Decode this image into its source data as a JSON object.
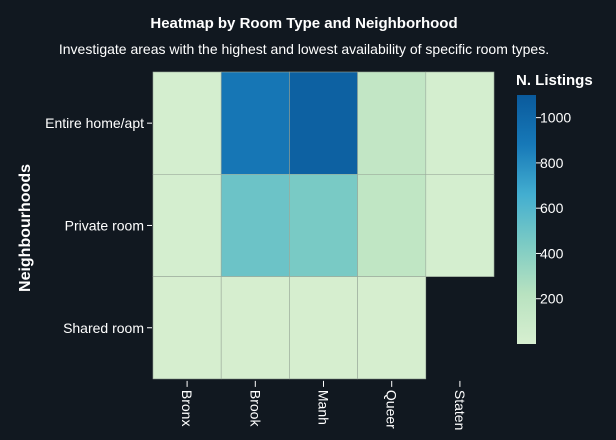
{
  "chart_data": {
    "type": "heatmap",
    "title": "Heatmap by Room Type and Neighborhood",
    "subtitle": "Investigate areas with the highest and lowest availability of specific room types.",
    "ylabel": "Neighbourhoods",
    "xlabel": "",
    "x_categories": [
      "Bronx",
      "Brook",
      "Manh",
      "Queer",
      "Staten"
    ],
    "y_categories": [
      "Entire home/apt",
      "Private room",
      "Shared room"
    ],
    "values": [
      [
        20,
        900,
        1050,
        150,
        20
      ],
      [
        20,
        500,
        450,
        160,
        20
      ],
      [
        10,
        10,
        10,
        10,
        null
      ]
    ],
    "colorbar": {
      "title": "N. Listings",
      "ticks": [
        200,
        400,
        600,
        800,
        1000
      ],
      "range": [
        0,
        1100
      ],
      "colors": [
        "#d7efd0",
        "#b8e2c0",
        "#7ccbc4",
        "#43aed0",
        "#1779b8",
        "#0a5a9c"
      ]
    },
    "background": "#111820",
    "grid": false,
    "legend_position": "right"
  }
}
